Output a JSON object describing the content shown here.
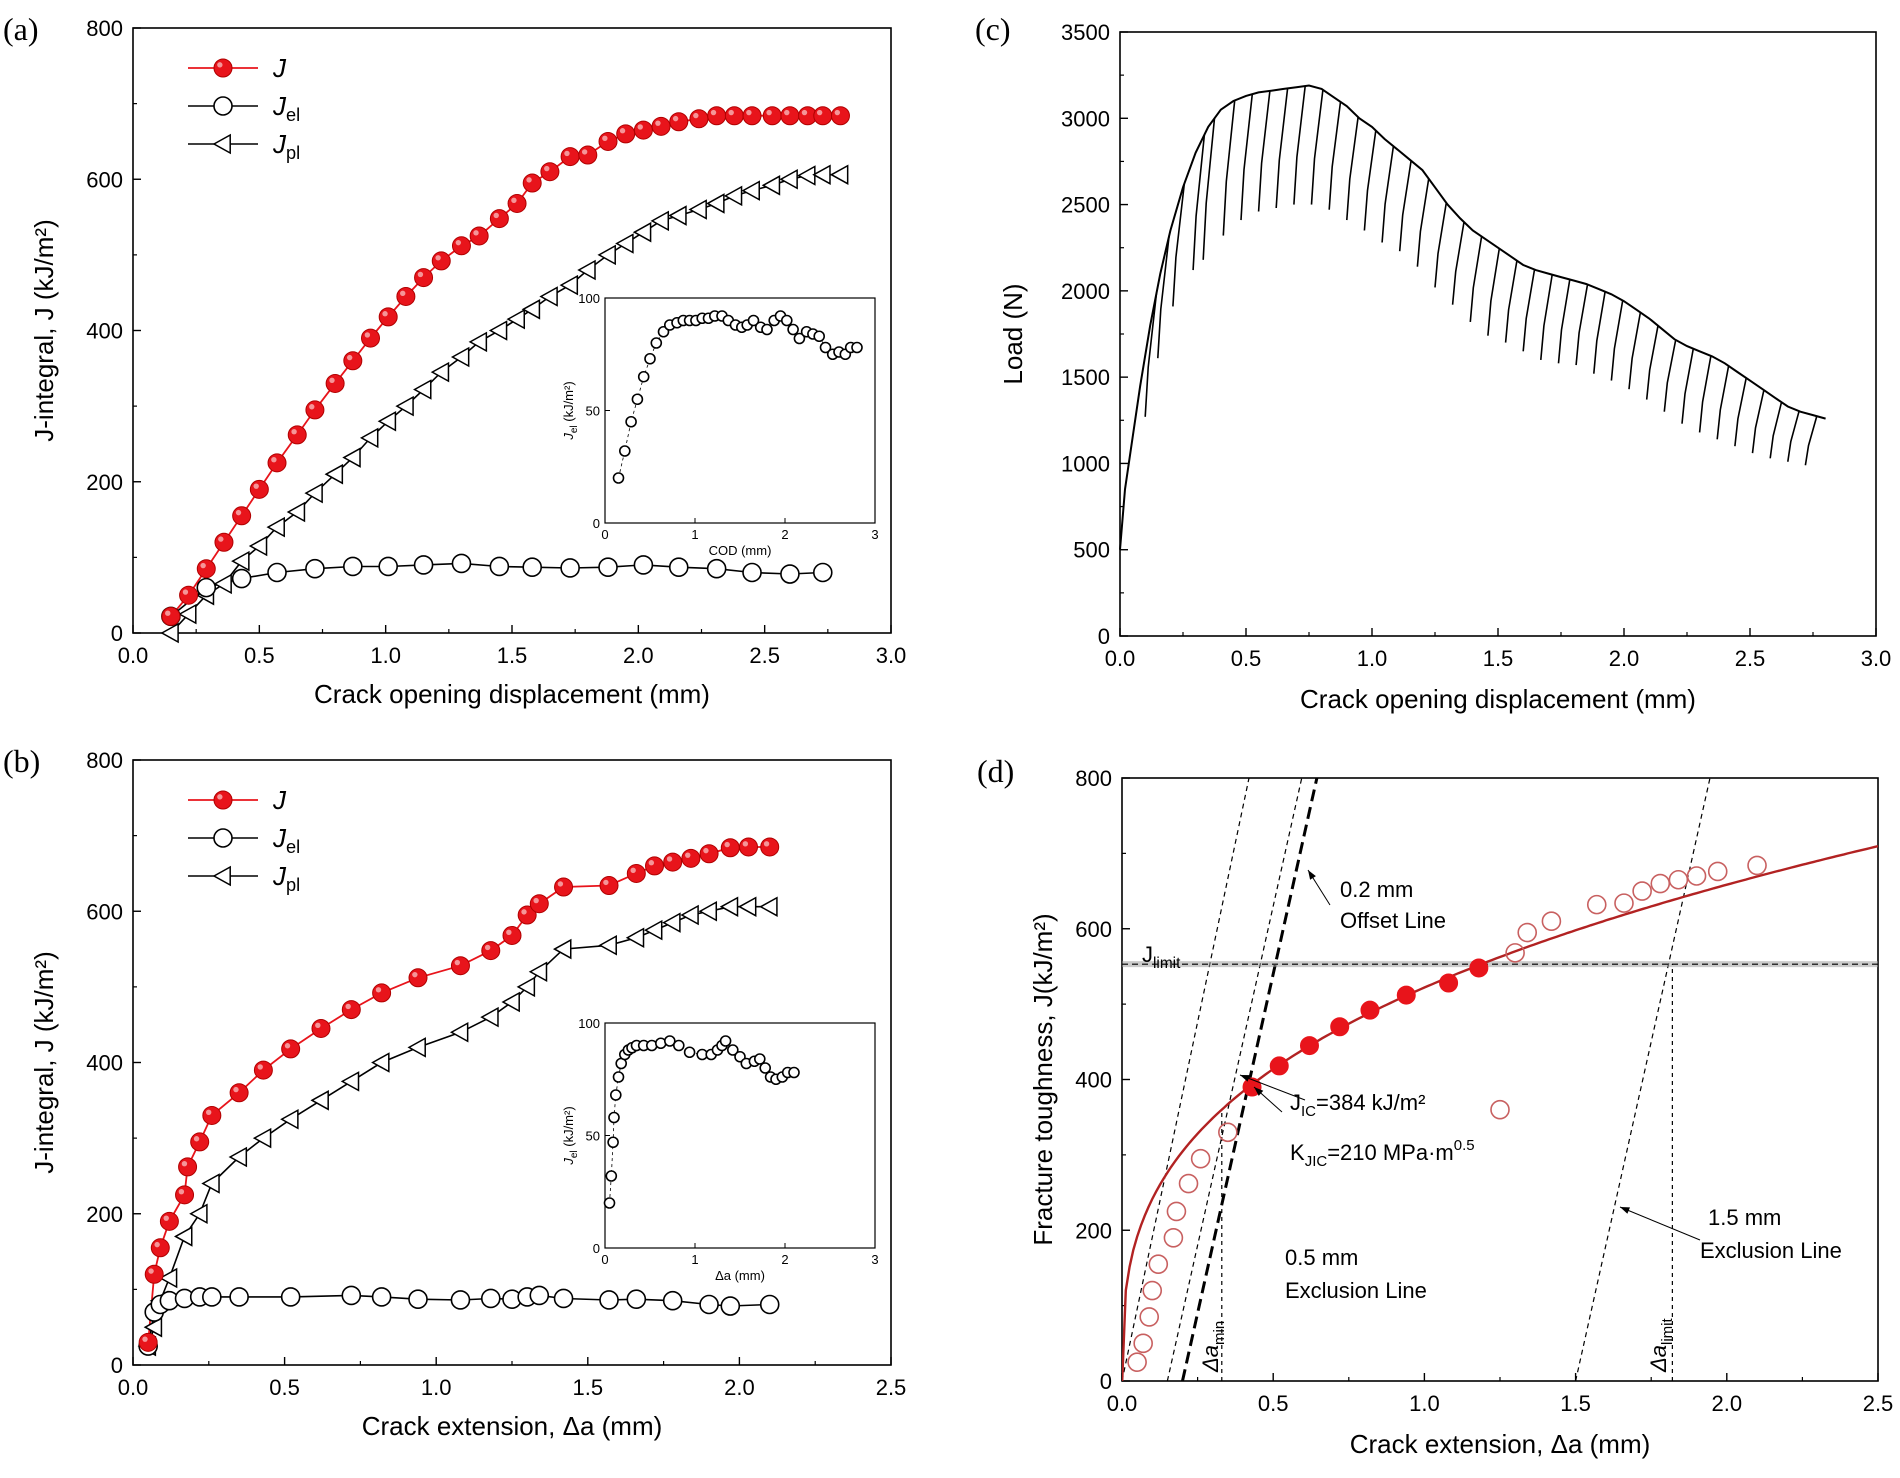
{
  "panels": {
    "a": {
      "label": "(a)",
      "xlabel": "Crack opening displacement (mm)",
      "ylabel": "J-integral, J (kJ/m²)",
      "legend": [
        "J",
        "J",
        "J"
      ],
      "legend_subs": [
        "",
        "el",
        "pl"
      ],
      "inset_xlabel": "COD (mm)",
      "inset_ylabel": "J",
      "inset_ylabel_sub": "el",
      "inset_ylabel_unit": " (kJ/m²)"
    },
    "b": {
      "label": "(b)",
      "xlabel": "Crack extension, Δa (mm)",
      "ylabel": "J-integral, J (kJ/m²)",
      "legend": [
        "J",
        "J",
        "J"
      ],
      "legend_subs": [
        "",
        "el",
        "pl"
      ],
      "inset_xlabel": "Δa (mm)",
      "inset_ylabel": "J",
      "inset_ylabel_sub": "el",
      "inset_ylabel_unit": " (kJ/m²)"
    },
    "c": {
      "label": "(c)",
      "xlabel": "Crack opening displacement (mm)",
      "ylabel": "Load (N)"
    },
    "d": {
      "label": "(d)",
      "xlabel": "Crack extension, Δa (mm)",
      "ylabel": "Fracture toughness, J(kJ/m²)",
      "annotations": {
        "offset": [
          "0.2 mm",
          "Offset Line"
        ],
        "excl05": [
          "0.5 mm",
          "Exclusion Line"
        ],
        "excl15": [
          "1.5 mm",
          "Exclusion Line"
        ],
        "jlimit": "J",
        "jlimit_sub": "limit",
        "jic": "J",
        "jic_sub": "IC",
        "jic_val": "=384 kJ/m²",
        "kjic": "K",
        "kjic_sub": "JIC",
        "kjic_val": "=210 MPa·m",
        "kjic_exp": "0.5",
        "damin": "Δa",
        "damin_sub": "min",
        "dalimit": "Δa",
        "dalimit_sub": "limit"
      }
    }
  },
  "colors": {
    "red": "#e8141b",
    "dark_red": "#b22222",
    "pale_red": "#c86060",
    "black": "#000000"
  },
  "chart_data": [
    {
      "id": "a",
      "type": "line",
      "xlabel": "Crack opening displacement (mm)",
      "ylabel": "J-integral, J (kJ/m²)",
      "xlim": [
        0,
        3.0
      ],
      "ylim": [
        0,
        800
      ],
      "xticks": [
        0.0,
        0.5,
        1.0,
        1.5,
        2.0,
        2.5,
        3.0
      ],
      "yticks": [
        0,
        200,
        400,
        600,
        800
      ],
      "series": [
        {
          "name": "J",
          "x": [
            0.15,
            0.22,
            0.29,
            0.36,
            0.43,
            0.5,
            0.57,
            0.65,
            0.72,
            0.8,
            0.87,
            0.94,
            1.01,
            1.08,
            1.15,
            1.22,
            1.3,
            1.37,
            1.45,
            1.52,
            1.58,
            1.65,
            1.73,
            1.8,
            1.88,
            1.95,
            2.02,
            2.09,
            2.16,
            2.24,
            2.31,
            2.38,
            2.45,
            2.53,
            2.6,
            2.67,
            2.73,
            2.8
          ],
          "y": [
            22,
            50,
            85,
            120,
            155,
            190,
            225,
            262,
            295,
            330,
            360,
            390,
            418,
            445,
            470,
            492,
            512,
            525,
            548,
            568,
            595,
            610,
            630,
            632,
            650,
            660,
            665,
            670,
            676,
            680,
            684,
            684,
            684,
            684,
            684,
            684,
            684,
            684
          ]
        },
        {
          "name": "J_el",
          "x": [
            0.15,
            0.29,
            0.43,
            0.57,
            0.72,
            0.87,
            1.01,
            1.15,
            1.3,
            1.45,
            1.58,
            1.73,
            1.88,
            2.02,
            2.16,
            2.31,
            2.45,
            2.6,
            2.73
          ],
          "y": [
            22,
            60,
            72,
            80,
            85,
            88,
            88,
            90,
            92,
            88,
            87,
            86,
            87,
            90,
            87,
            85,
            80,
            78,
            80
          ]
        },
        {
          "name": "J_pl",
          "x": [
            0.15,
            0.22,
            0.29,
            0.36,
            0.43,
            0.5,
            0.57,
            0.65,
            0.72,
            0.8,
            0.87,
            0.94,
            1.01,
            1.08,
            1.15,
            1.22,
            1.3,
            1.37,
            1.45,
            1.52,
            1.58,
            1.65,
            1.73,
            1.8,
            1.88,
            1.95,
            2.02,
            2.09,
            2.16,
            2.24,
            2.31,
            2.38,
            2.45,
            2.53,
            2.6,
            2.67,
            2.73,
            2.8
          ],
          "y": [
            0,
            25,
            50,
            65,
            95,
            115,
            140,
            160,
            185,
            210,
            232,
            258,
            280,
            300,
            322,
            345,
            365,
            385,
            400,
            415,
            428,
            445,
            460,
            480,
            500,
            515,
            530,
            545,
            552,
            560,
            568,
            578,
            585,
            592,
            600,
            605,
            606,
            606
          ]
        }
      ]
    },
    {
      "id": "a_inset",
      "type": "scatter",
      "xlabel": "COD (mm)",
      "ylabel": "J_el (kJ/m²)",
      "xlim": [
        0,
        3
      ],
      "ylim": [
        0,
        100
      ],
      "xticks": [
        0,
        1,
        2,
        3
      ],
      "yticks": [
        0,
        50,
        100
      ],
      "x": [
        0.15,
        0.22,
        0.29,
        0.36,
        0.43,
        0.5,
        0.57,
        0.65,
        0.72,
        0.8,
        0.87,
        0.94,
        1.01,
        1.08,
        1.15,
        1.22,
        1.3,
        1.37,
        1.45,
        1.52,
        1.58,
        1.65,
        1.73,
        1.8,
        1.88,
        1.95,
        2.02,
        2.09,
        2.16,
        2.24,
        2.31,
        2.38,
        2.45,
        2.53,
        2.6,
        2.67,
        2.73,
        2.8
      ],
      "y": [
        20,
        32,
        45,
        55,
        65,
        73,
        80,
        85,
        88,
        89,
        90,
        90,
        90,
        91,
        91,
        92,
        92,
        90,
        88,
        87,
        88,
        90,
        87,
        86,
        90,
        92,
        90,
        86,
        82,
        85,
        84,
        83,
        78,
        75,
        76,
        75,
        78,
        78
      ]
    },
    {
      "id": "b",
      "type": "line",
      "xlabel": "Crack extension, Δa (mm)",
      "ylabel": "J-integral, J (kJ/m²)",
      "xlim": [
        0,
        2.5
      ],
      "ylim": [
        0,
        800
      ],
      "xticks": [
        0.0,
        0.5,
        1.0,
        1.5,
        2.0,
        2.5
      ],
      "yticks": [
        0,
        200,
        400,
        600,
        800
      ],
      "series": [
        {
          "name": "J",
          "x": [
            0.05,
            0.07,
            0.09,
            0.12,
            0.17,
            0.18,
            0.22,
            0.26,
            0.35,
            0.43,
            0.52,
            0.62,
            0.72,
            0.82,
            0.94,
            1.08,
            1.18,
            1.25,
            1.3,
            1.34,
            1.42,
            1.57,
            1.66,
            1.72,
            1.78,
            1.84,
            1.9,
            1.97,
            2.03,
            2.1
          ],
          "y": [
            30,
            120,
            155,
            190,
            225,
            262,
            295,
            330,
            360,
            390,
            418,
            445,
            470,
            492,
            512,
            528,
            548,
            568,
            595,
            610,
            632,
            634,
            650,
            660,
            665,
            670,
            676,
            684,
            685,
            685
          ]
        },
        {
          "name": "J_el",
          "x": [
            0.05,
            0.07,
            0.09,
            0.12,
            0.17,
            0.22,
            0.26,
            0.35,
            0.52,
            0.72,
            0.82,
            0.94,
            1.08,
            1.18,
            1.25,
            1.3,
            1.34,
            1.42,
            1.57,
            1.66,
            1.78,
            1.9,
            1.97,
            2.1
          ],
          "y": [
            25,
            70,
            80,
            85,
            88,
            90,
            90,
            90,
            90,
            92,
            90,
            87,
            86,
            88,
            87,
            90,
            92,
            88,
            86,
            87,
            85,
            80,
            78,
            80
          ]
        },
        {
          "name": "J_pl",
          "x": [
            0.05,
            0.07,
            0.09,
            0.12,
            0.17,
            0.22,
            0.26,
            0.35,
            0.43,
            0.52,
            0.62,
            0.72,
            0.82,
            0.94,
            1.08,
            1.18,
            1.25,
            1.3,
            1.34,
            1.42,
            1.57,
            1.66,
            1.72,
            1.78,
            1.84,
            1.9,
            1.97,
            2.03,
            2.1
          ],
          "y": [
            25,
            50,
            85,
            115,
            170,
            200,
            240,
            275,
            300,
            325,
            350,
            375,
            400,
            420,
            440,
            460,
            480,
            500,
            520,
            550,
            555,
            565,
            575,
            585,
            595,
            600,
            606,
            606,
            606
          ]
        }
      ]
    },
    {
      "id": "b_inset",
      "type": "scatter",
      "xlabel": "Δa (mm)",
      "ylabel": "J_el (kJ/m²)",
      "xlim": [
        0,
        3
      ],
      "ylim": [
        0,
        100
      ],
      "xticks": [
        0,
        1,
        2,
        3
      ],
      "yticks": [
        0,
        50,
        100
      ],
      "x": [
        0.05,
        0.07,
        0.09,
        0.1,
        0.12,
        0.15,
        0.18,
        0.22,
        0.26,
        0.3,
        0.35,
        0.43,
        0.52,
        0.62,
        0.72,
        0.82,
        0.94,
        1.08,
        1.18,
        1.25,
        1.3,
        1.34,
        1.42,
        1.5,
        1.57,
        1.66,
        1.72,
        1.78,
        1.84,
        1.9,
        1.97,
        2.03,
        2.1
      ],
      "y": [
        20,
        32,
        47,
        58,
        68,
        76,
        82,
        86,
        88,
        89,
        90,
        90,
        90,
        91,
        92,
        90,
        87,
        86,
        86,
        88,
        90,
        92,
        88,
        85,
        82,
        83,
        84,
        80,
        76,
        75,
        76,
        78,
        78
      ]
    },
    {
      "id": "c",
      "type": "line",
      "xlabel": "Crack opening displacement (mm)",
      "ylabel": "Load (N)",
      "xlim": [
        0,
        3.0
      ],
      "ylim": [
        0,
        3500
      ],
      "xticks": [
        0.0,
        0.5,
        1.0,
        1.5,
        2.0,
        2.5,
        3.0
      ],
      "yticks": [
        0,
        500,
        1000,
        1500,
        2000,
        2500,
        3000,
        3500
      ],
      "envelope": {
        "x": [
          0.0,
          0.02,
          0.05,
          0.08,
          0.12,
          0.16,
          0.2,
          0.25,
          0.3,
          0.35,
          0.4,
          0.45,
          0.5,
          0.55,
          0.6,
          0.65,
          0.7,
          0.75,
          0.8,
          0.85,
          0.9,
          0.95,
          1.0,
          1.05,
          1.1,
          1.15,
          1.2,
          1.25,
          1.3,
          1.35,
          1.4,
          1.45,
          1.5,
          1.55,
          1.6,
          1.65,
          1.7,
          1.75,
          1.8,
          1.85,
          1.9,
          1.95,
          2.0,
          2.05,
          2.1,
          2.15,
          2.2,
          2.25,
          2.3,
          2.35,
          2.4,
          2.45,
          2.5,
          2.55,
          2.6,
          2.65,
          2.7,
          2.75,
          2.8
        ],
        "y": [
          500,
          850,
          1150,
          1450,
          1800,
          2100,
          2350,
          2600,
          2800,
          2950,
          3050,
          3100,
          3130,
          3150,
          3160,
          3170,
          3180,
          3190,
          3170,
          3120,
          3070,
          3000,
          2950,
          2880,
          2820,
          2760,
          2700,
          2600,
          2500,
          2420,
          2350,
          2300,
          2250,
          2200,
          2150,
          2120,
          2100,
          2080,
          2060,
          2040,
          2010,
          1980,
          1940,
          1890,
          1840,
          1780,
          1720,
          1680,
          1650,
          1620,
          1580,
          1530,
          1480,
          1430,
          1380,
          1330,
          1300,
          1280,
          1260
        ]
      },
      "unloads": [
        {
          "x": 0.1,
          "y": 1270
        },
        {
          "x": 0.15,
          "y": 1610
        },
        {
          "x": 0.21,
          "y": 1910
        },
        {
          "x": 0.29,
          "y": 2120
        },
        {
          "x": 0.33,
          "y": 2180
        },
        {
          "x": 0.41,
          "y": 2320
        },
        {
          "x": 0.48,
          "y": 2410
        },
        {
          "x": 0.55,
          "y": 2460
        },
        {
          "x": 0.62,
          "y": 2480
        },
        {
          "x": 0.69,
          "y": 2500
        },
        {
          "x": 0.76,
          "y": 2500
        },
        {
          "x": 0.83,
          "y": 2470
        },
        {
          "x": 0.9,
          "y": 2410
        },
        {
          "x": 0.97,
          "y": 2350
        },
        {
          "x": 1.04,
          "y": 2280
        },
        {
          "x": 1.11,
          "y": 2230
        },
        {
          "x": 1.18,
          "y": 2140
        },
        {
          "x": 1.25,
          "y": 2020
        },
        {
          "x": 1.32,
          "y": 1920
        },
        {
          "x": 1.39,
          "y": 1820
        },
        {
          "x": 1.46,
          "y": 1740
        },
        {
          "x": 1.53,
          "y": 1700
        },
        {
          "x": 1.6,
          "y": 1650
        },
        {
          "x": 1.67,
          "y": 1600
        },
        {
          "x": 1.74,
          "y": 1580
        },
        {
          "x": 1.81,
          "y": 1570
        },
        {
          "x": 1.88,
          "y": 1520
        },
        {
          "x": 1.95,
          "y": 1480
        },
        {
          "x": 2.02,
          "y": 1430
        },
        {
          "x": 2.09,
          "y": 1370
        },
        {
          "x": 2.16,
          "y": 1300
        },
        {
          "x": 2.23,
          "y": 1230
        },
        {
          "x": 2.3,
          "y": 1180
        },
        {
          "x": 2.37,
          "y": 1140
        },
        {
          "x": 2.44,
          "y": 1100
        },
        {
          "x": 2.51,
          "y": 1060
        },
        {
          "x": 2.58,
          "y": 1030
        },
        {
          "x": 2.65,
          "y": 1010
        },
        {
          "x": 2.72,
          "y": 990
        }
      ]
    },
    {
      "id": "d",
      "type": "scatter",
      "xlabel": "Crack extension, Δa (mm)",
      "ylabel": "Fracture toughness, J(kJ/m²)",
      "xlim": [
        0,
        2.5
      ],
      "ylim": [
        0,
        800
      ],
      "xticks": [
        0.0,
        0.5,
        1.0,
        1.5,
        2.0,
        2.5
      ],
      "yticks": [
        0,
        200,
        400,
        600,
        800
      ],
      "valid_points": {
        "x": [
          0.43,
          0.52,
          0.62,
          0.72,
          0.82,
          0.94,
          1.08,
          1.18
        ],
        "y": [
          390,
          418,
          445,
          470,
          492,
          512,
          528,
          548
        ]
      },
      "excluded_points": {
        "x": [
          0.05,
          0.07,
          0.09,
          0.1,
          0.12,
          0.17,
          0.18,
          0.22,
          0.26,
          0.35,
          1.25,
          1.3,
          1.34,
          1.42,
          1.57,
          1.66,
          1.72,
          1.78,
          1.84,
          1.9,
          1.97,
          2.1
        ],
        "y": [
          25,
          50,
          85,
          120,
          155,
          190,
          225,
          262,
          295,
          330,
          360,
          568,
          595,
          610,
          632,
          634,
          650,
          660,
          665,
          670,
          676,
          684
        ]
      },
      "fit_curve": {
        "type": "power",
        "C": 522,
        "n": 0.335
      },
      "offset_line_0_2mm": {
        "x0": 0.2,
        "slope": 1600
      },
      "exclusion_line_0_15mm": {
        "x0": 0.15,
        "slope": 1600
      },
      "exclusion_line_0_5mm": {
        "x0": 0.5,
        "slope": 1600
      },
      "exclusion_line_1_5mm": {
        "x0": 1.5,
        "slope": 1600
      },
      "jlimit": 553,
      "jic": 384,
      "damin": 0.33,
      "dalimit": 1.82
    }
  ]
}
